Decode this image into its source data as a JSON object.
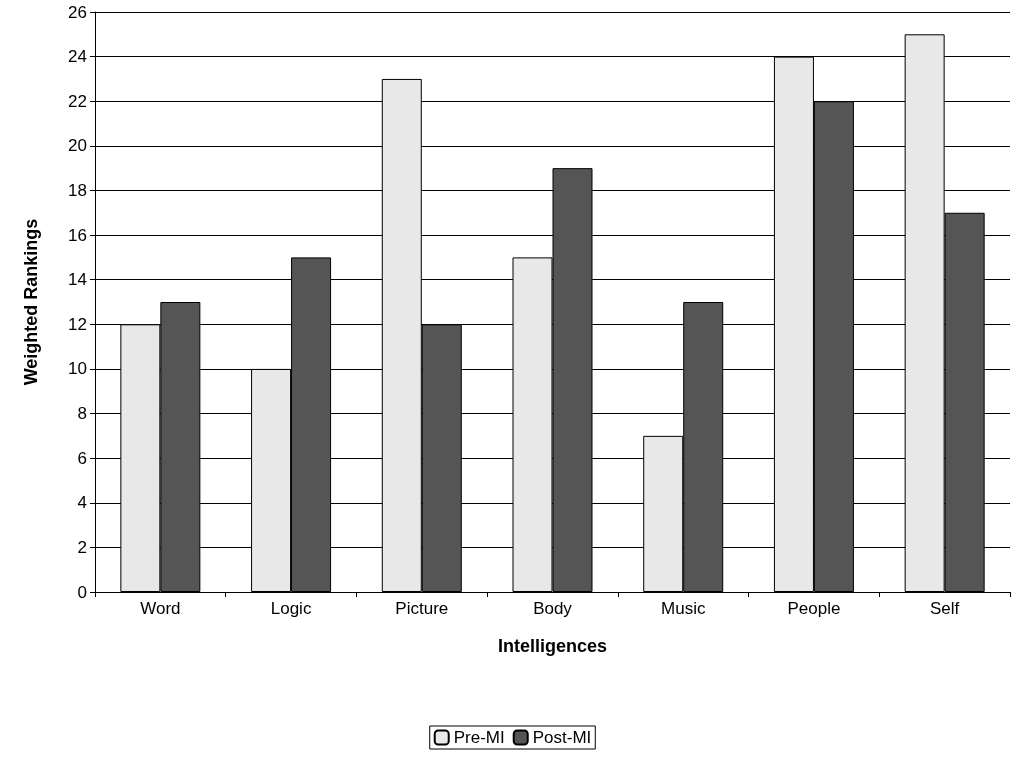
{
  "chart_data": {
    "type": "bar",
    "xlabel": "Intelligences",
    "ylabel": "Weighted Rankings",
    "categories": [
      "Word",
      "Logic",
      "Picture",
      "Body",
      "Music",
      "People",
      "Self"
    ],
    "series": [
      {
        "name": "Pre-MI",
        "color": "#e8e8e8",
        "values": [
          12,
          10,
          23,
          15,
          7,
          24,
          25
        ]
      },
      {
        "name": "Post-MI",
        "color": "#555555",
        "values": [
          13,
          15,
          12,
          19,
          13,
          22,
          17
        ]
      }
    ],
    "ylim": [
      0,
      26
    ],
    "yticks": [
      0,
      2,
      4,
      6,
      8,
      10,
      12,
      14,
      16,
      18,
      20,
      22,
      24,
      26
    ],
    "grid": "y",
    "legend": "bottom"
  }
}
